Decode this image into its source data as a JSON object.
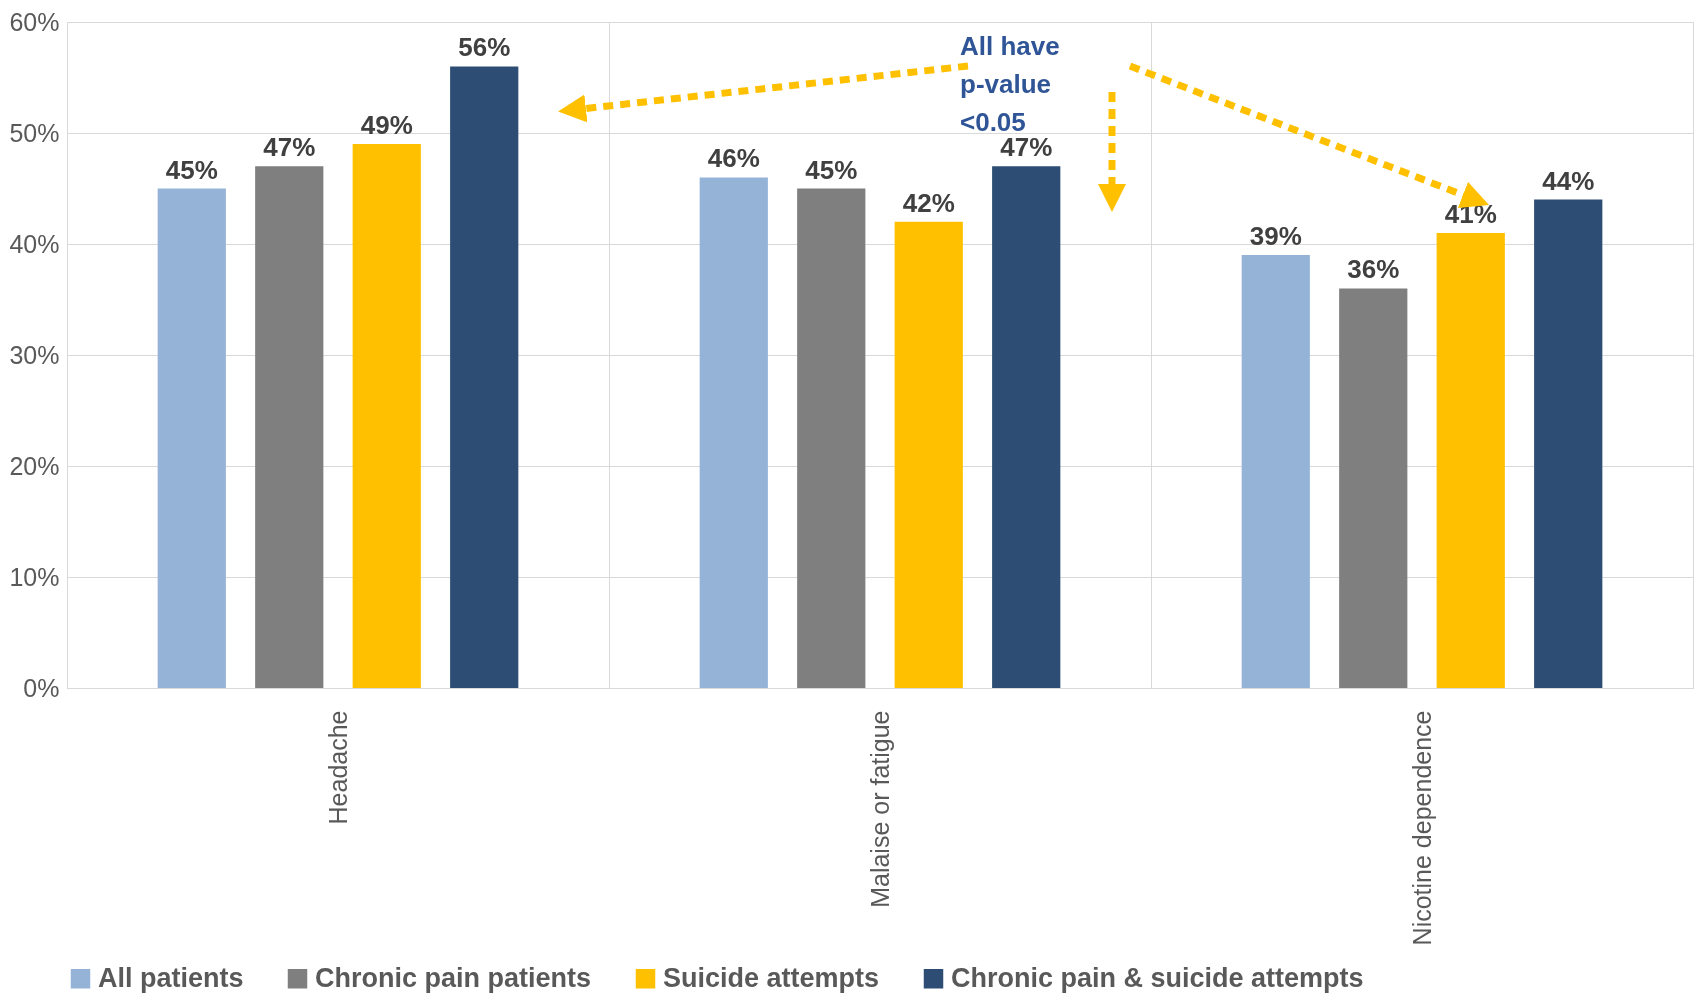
{
  "chart_data": {
    "type": "bar",
    "categories": [
      "Headache",
      "Malaise or fatigue",
      "Nicotine dependence"
    ],
    "series": [
      {
        "name": "All patients",
        "color": "#95b3d7",
        "values": [
          45,
          46,
          39
        ],
        "value_labels": [
          "45%",
          "46%",
          "39%"
        ]
      },
      {
        "name": "Chronic pain patients",
        "color": "#7f7f7f",
        "values": [
          47,
          45,
          36
        ],
        "value_labels": [
          "47%",
          "45%",
          "36%"
        ]
      },
      {
        "name": "Suicide attempts",
        "color": "#ffc000",
        "values": [
          49,
          42,
          41
        ],
        "value_labels": [
          "49%",
          "42%",
          "41%"
        ]
      },
      {
        "name": "Chronic pain & suicide attempts",
        "color": "#2e4d74",
        "values": [
          56,
          47,
          44
        ],
        "value_labels": [
          "56%",
          "47%",
          "44%"
        ]
      }
    ],
    "ylim": [
      0,
      60
    ],
    "yticks": [
      {
        "value": 0,
        "label": "0%"
      },
      {
        "value": 10,
        "label": "10%"
      },
      {
        "value": 20,
        "label": "20%"
      },
      {
        "value": 30,
        "label": "30%"
      },
      {
        "value": 40,
        "label": "40%"
      },
      {
        "value": 50,
        "label": "50%"
      },
      {
        "value": 60,
        "label": "60%"
      }
    ],
    "grid": true,
    "legend": "bottom",
    "annotations": [
      "All have\np-value\n<0.05"
    ]
  }
}
